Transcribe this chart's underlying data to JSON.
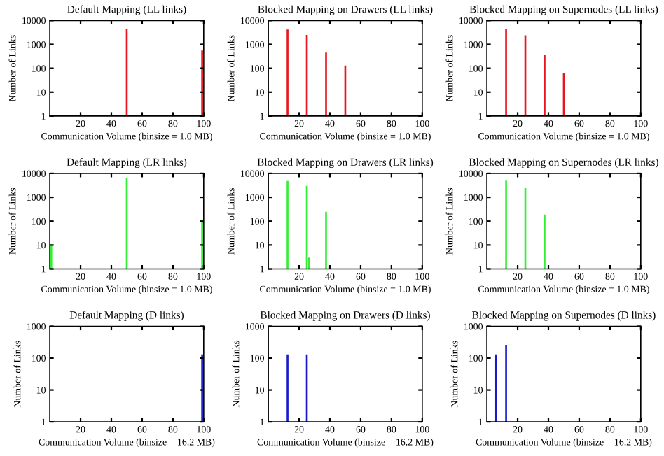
{
  "chart_data": [
    {
      "type": "bar",
      "title": "Default Mapping (LL links)",
      "xlabel": "Communication Volume (binsize = 1.0 MB)",
      "ylabel": "Number of Links",
      "log": true,
      "x": [
        50,
        99
      ],
      "values": [
        4500,
        550
      ],
      "color": "#e8141e",
      "xlim": [
        0,
        100
      ],
      "xticks": [
        20,
        40,
        60,
        80,
        100
      ],
      "ylim": [
        1,
        10000
      ],
      "yticks": [
        1,
        10,
        100,
        1000,
        10000
      ],
      "grid": false,
      "legend": false
    },
    {
      "type": "bar",
      "title": "Blocked Mapping on Drawers (LL links)",
      "xlabel": "Communication Volume (binsize = 1.0 MB)",
      "ylabel": "Number of Links",
      "log": true,
      "x": [
        12.5,
        25,
        37.5,
        50
      ],
      "values": [
        4200,
        2500,
        450,
        130
      ],
      "color": "#e8141e",
      "xlim": [
        0,
        100
      ],
      "xticks": [
        20,
        40,
        60,
        80,
        100
      ],
      "ylim": [
        1,
        10000
      ],
      "yticks": [
        1,
        10,
        100,
        1000,
        10000
      ],
      "grid": false,
      "legend": false
    },
    {
      "type": "bar",
      "title": "Blocked Mapping on Supernodes (LL links)",
      "xlabel": "Communication Volume (binsize = 1.0 MB)",
      "ylabel": "Number of Links",
      "log": true,
      "x": [
        12.5,
        25,
        37.5,
        50
      ],
      "values": [
        4300,
        2400,
        350,
        65
      ],
      "color": "#e8141e",
      "xlim": [
        0,
        100
      ],
      "xticks": [
        20,
        40,
        60,
        80,
        100
      ],
      "ylim": [
        1,
        10000
      ],
      "yticks": [
        1,
        10,
        100,
        1000,
        10000
      ],
      "grid": false,
      "legend": false
    },
    {
      "type": "bar",
      "title": "Default Mapping (LR links)",
      "xlabel": "Communication Volume (binsize = 1.0 MB)",
      "ylabel": "Number of Links",
      "log": true,
      "x": [
        1,
        50,
        99
      ],
      "values": [
        10,
        6500,
        95
      ],
      "color": "#33ee33",
      "xlim": [
        0,
        100
      ],
      "xticks": [
        20,
        40,
        60,
        80,
        100
      ],
      "ylim": [
        1,
        10000
      ],
      "yticks": [
        1,
        10,
        100,
        1000,
        10000
      ],
      "grid": false,
      "legend": false
    },
    {
      "type": "bar",
      "title": "Blocked Mapping on Drawers (LR links)",
      "xlabel": "Communication Volume (binsize = 1.0 MB)",
      "ylabel": "Number of Links",
      "log": true,
      "x": [
        12.5,
        25,
        26.5,
        37.5
      ],
      "values": [
        4800,
        3000,
        3,
        250
      ],
      "color": "#33ee33",
      "xlim": [
        0,
        100
      ],
      "xticks": [
        20,
        40,
        60,
        80,
        100
      ],
      "ylim": [
        1,
        10000
      ],
      "yticks": [
        1,
        10,
        100,
        1000,
        10000
      ],
      "grid": false,
      "legend": false
    },
    {
      "type": "bar",
      "title": "Blocked Mapping on Supernodes (LR links)",
      "xlabel": "Communication Volume (binsize = 1.0 MB)",
      "ylabel": "Number of Links",
      "log": true,
      "x": [
        12.5,
        25,
        37.5
      ],
      "values": [
        5000,
        2400,
        190
      ],
      "color": "#33ee33",
      "xlim": [
        0,
        100
      ],
      "xticks": [
        20,
        40,
        60,
        80,
        100
      ],
      "ylim": [
        1,
        10000
      ],
      "yticks": [
        1,
        10,
        100,
        1000,
        10000
      ],
      "grid": false,
      "legend": false
    },
    {
      "type": "bar",
      "title": "Default Mapping (D links)",
      "xlabel": "Communication Volume (binsize = 16.2 MB)",
      "ylabel": "Number of Links",
      "log": true,
      "x": [
        99
      ],
      "values": [
        130
      ],
      "color": "#1a1acc",
      "xlim": [
        0,
        100
      ],
      "xticks": [
        20,
        40,
        60,
        80,
        100
      ],
      "ylim": [
        1,
        1000
      ],
      "yticks": [
        1,
        10,
        100,
        1000
      ],
      "grid": false,
      "legend": false
    },
    {
      "type": "bar",
      "title": "Blocked Mapping on Drawers (D links)",
      "xlabel": "Communication Volume (binsize = 16.2 MB)",
      "ylabel": "Number of Links",
      "log": true,
      "x": [
        12.5,
        25
      ],
      "values": [
        130,
        130
      ],
      "color": "#1a1acc",
      "xlim": [
        0,
        100
      ],
      "xticks": [
        20,
        40,
        60,
        80,
        100
      ],
      "ylim": [
        1,
        1000
      ],
      "yticks": [
        1,
        10,
        100,
        1000
      ],
      "grid": false,
      "legend": false
    },
    {
      "type": "bar",
      "title": "Blocked Mapping on Supernodes (D links)",
      "xlabel": "Communication Volume (binsize = 16.2 MB)",
      "ylabel": "Number of Links",
      "log": true,
      "x": [
        6,
        12.5
      ],
      "values": [
        130,
        260
      ],
      "color": "#1a1acc",
      "xlim": [
        0,
        100
      ],
      "xticks": [
        20,
        40,
        60,
        80,
        100
      ],
      "ylim": [
        1,
        1000
      ],
      "yticks": [
        1,
        10,
        100,
        1000
      ],
      "grid": false,
      "legend": false
    }
  ]
}
